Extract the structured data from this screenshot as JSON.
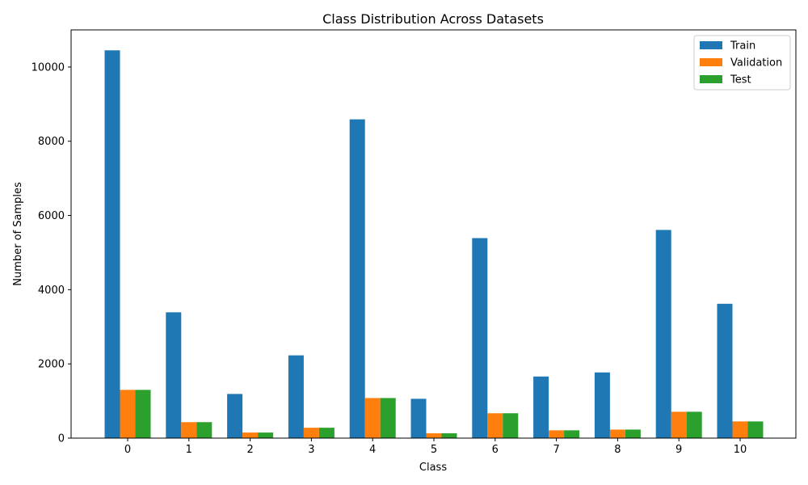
{
  "chart_data": {
    "type": "bar",
    "title": "Class Distribution Across Datasets",
    "xlabel": "Class",
    "ylabel": "Number of Samples",
    "categories": [
      "0",
      "1",
      "2",
      "3",
      "4",
      "5",
      "6",
      "7",
      "8",
      "9",
      "10"
    ],
    "series": [
      {
        "name": "Train",
        "color": "#1f77b4",
        "values": [
          10450,
          3390,
          1190,
          2230,
          8590,
          1060,
          5390,
          1660,
          1770,
          5610,
          3620
        ]
      },
      {
        "name": "Validation",
        "color": "#ff7f0e",
        "values": [
          1300,
          430,
          150,
          280,
          1080,
          130,
          670,
          210,
          230,
          710,
          450
        ]
      },
      {
        "name": "Test",
        "color": "#2ca02c",
        "values": [
          1300,
          430,
          150,
          280,
          1080,
          130,
          670,
          210,
          230,
          710,
          450
        ]
      }
    ],
    "ylim": [
      0,
      11000
    ],
    "yticks": [
      0,
      2000,
      4000,
      6000,
      8000,
      10000
    ],
    "ytick_labels": [
      "0",
      "2000",
      "4000",
      "6000",
      "8000",
      "10000"
    ],
    "grid": false,
    "legend_position": "top-right"
  }
}
